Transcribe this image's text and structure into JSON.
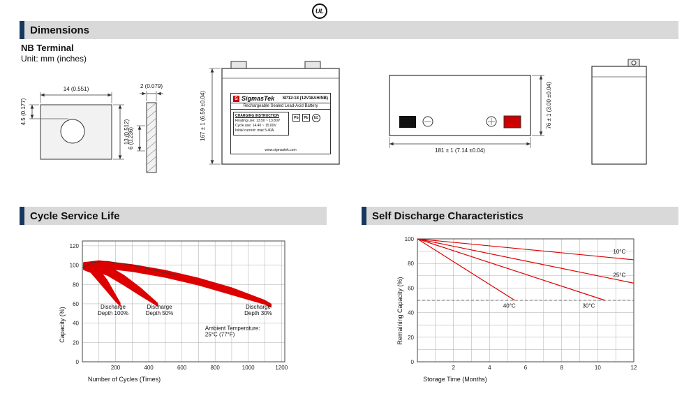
{
  "misc": {
    "ul_logo_text": "UL"
  },
  "sections": {
    "dimensions": "Dimensions",
    "cycle_service_life": "Cycle Service Life",
    "self_discharge": "Self Discharge Characteristics"
  },
  "dimensions": {
    "terminal_title": "NB Terminal",
    "unit": "Unit: mm (inches)",
    "labels": {
      "front_width": "14 (0.551)",
      "front_hole_offset": "4.5 (0.177)",
      "front_height": "13 (0.512)",
      "side_width": "2 (0.079)",
      "side_height": "6 (0.236)",
      "battery_height": "167 ± 1 (6.59 ±0.04)",
      "battery_length": "181 ± 1 (7.14 ±0.04)",
      "battery_width": "76 ± 1 (3.00 ±0.04)"
    }
  },
  "battery_label": {
    "logo_letter": "S",
    "brand": "SigmasTek",
    "model": "SP12-18 (12V18AH/NB)",
    "subtitle": "Rechargeable Sealed Lead-Acid Battery",
    "charging_title": "CHARGING INSTRUCTION",
    "charging_lines": [
      "Floating use: 13.50 ~ 13.80V",
      "Cycle use: 14.40 ~ 15.00V",
      "Initial current: max 5.40A"
    ],
    "pb": "Pb",
    "ul": "UL",
    "website": "www.sigmastek.com"
  },
  "chart_data": [
    {
      "type": "area",
      "title": "Cycle Service Life",
      "xlabel": "Number of Cycles (Times)",
      "ylabel": "Capacity (%)",
      "xlim": [
        0,
        1220
      ],
      "ylim": [
        0,
        125
      ],
      "xticks": [
        200,
        400,
        600,
        800,
        1000,
        1200
      ],
      "yticks": [
        0,
        20,
        40,
        60,
        80,
        100,
        120
      ],
      "grid_x_step": 100,
      "grid_y_step": 20,
      "grid": true,
      "band_color": "#dd0000",
      "bands": [
        {
          "name": "Discharge Depth 100%",
          "upper": [
            [
              5,
              102
            ],
            [
              50,
              103
            ],
            [
              100,
              96
            ],
            [
              150,
              85
            ],
            [
              200,
              70
            ],
            [
              230,
              61
            ]
          ],
          "lower": [
            [
              5,
              95
            ],
            [
              50,
              92
            ],
            [
              100,
              82
            ],
            [
              150,
              72
            ],
            [
              200,
              62
            ],
            [
              230,
              57
            ]
          ]
        },
        {
          "name": "Discharge Depth 50%",
          "upper": [
            [
              5,
              102
            ],
            [
              60,
              104
            ],
            [
              150,
              100
            ],
            [
              250,
              90
            ],
            [
              350,
              77
            ],
            [
              455,
              61
            ]
          ],
          "lower": [
            [
              5,
              95
            ],
            [
              60,
              94
            ],
            [
              150,
              89
            ],
            [
              250,
              79
            ],
            [
              350,
              68
            ],
            [
              455,
              57
            ]
          ]
        },
        {
          "name": "Discharge Depth 30%",
          "upper": [
            [
              5,
              103
            ],
            [
              100,
              105
            ],
            [
              300,
              101
            ],
            [
              500,
              95
            ],
            [
              700,
              87
            ],
            [
              900,
              77
            ],
            [
              1100,
              64
            ],
            [
              1140,
              60
            ]
          ],
          "lower": [
            [
              5,
              96
            ],
            [
              100,
              97
            ],
            [
              300,
              93
            ],
            [
              500,
              87
            ],
            [
              700,
              79
            ],
            [
              900,
              69
            ],
            [
              1100,
              59
            ],
            [
              1140,
              56
            ]
          ]
        }
      ],
      "curve": {
        "color": "#333333",
        "points": [
          [
            0,
            97
          ],
          [
            60,
            103
          ],
          [
            150,
            104
          ],
          [
            300,
            100
          ],
          [
            450,
            94
          ],
          [
            560,
            90
          ]
        ]
      },
      "annotations": [
        {
          "text": "Discharge\nDepth 100%",
          "x": 185,
          "y": 55
        },
        {
          "text": "Discharge\nDepth 50%",
          "x": 465,
          "y": 55
        },
        {
          "text": "Discharge\nDepth 30%",
          "x": 1060,
          "y": 55
        },
        {
          "text": "Ambient Temperature:\n25°C (77°F)",
          "x": 740,
          "y": 33,
          "align": "left"
        }
      ]
    },
    {
      "type": "line",
      "title": "Self Discharge Characteristics",
      "xlabel": "Storage Time (Months)",
      "ylabel": "Remaining Capacity (%)",
      "xlim": [
        0,
        12
      ],
      "ylim": [
        0,
        100
      ],
      "xticks": [
        2,
        4,
        6,
        8,
        10,
        12
      ],
      "yticks": [
        0,
        20,
        40,
        60,
        80,
        100
      ],
      "grid_x_step": 1,
      "grid_y_step": 10,
      "grid": true,
      "line_color": "#dd0000",
      "series": [
        {
          "name": "10°C",
          "points": [
            [
              0,
              100
            ],
            [
              12,
              83
            ]
          ]
        },
        {
          "name": "25°C",
          "points": [
            [
              0,
              100
            ],
            [
              12,
              64
            ]
          ]
        },
        {
          "name": "30°C",
          "points": [
            [
              0,
              100
            ],
            [
              10.4,
              50
            ]
          ]
        },
        {
          "name": "40°C",
          "points": [
            [
              0,
              100
            ],
            [
              5.4,
              50
            ]
          ]
        }
      ],
      "reference_line": {
        "y": 50,
        "style": "dashed"
      },
      "annotations": [
        {
          "text": "10°C",
          "x": 11.2,
          "y": 88
        },
        {
          "text": "25°C",
          "x": 11.2,
          "y": 69
        },
        {
          "text": "30°C",
          "x": 9.5,
          "y": 44
        },
        {
          "text": "40°C",
          "x": 5.1,
          "y": 44
        }
      ]
    }
  ]
}
